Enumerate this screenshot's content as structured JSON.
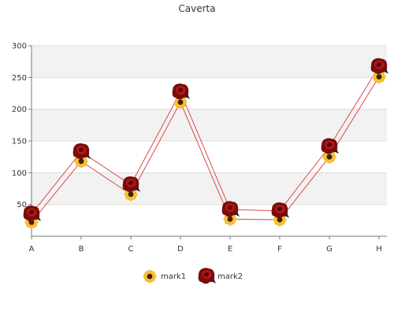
{
  "chart_data": {
    "type": "line",
    "title": "Caverta",
    "categories": [
      "A",
      "B",
      "C",
      "D",
      "E",
      "F",
      "G",
      "H"
    ],
    "ylim": [
      0,
      300
    ],
    "yticks": [
      50,
      100,
      150,
      200,
      250,
      300
    ],
    "grid": true,
    "legend": "bottom-center",
    "series": [
      {
        "name": "mark1",
        "values": [
          22,
          118,
          66,
          211,
          27,
          26,
          125,
          251
        ],
        "color": "#e8a21a",
        "marker": "sunflower-icon"
      },
      {
        "name": "mark2",
        "values": [
          35,
          133,
          81,
          227,
          42,
          40,
          141,
          267
        ],
        "color": "#9b1010",
        "marker": "rose-icon"
      }
    ],
    "line_color": "#d94b4b",
    "band_color": "#f2f2f2"
  }
}
